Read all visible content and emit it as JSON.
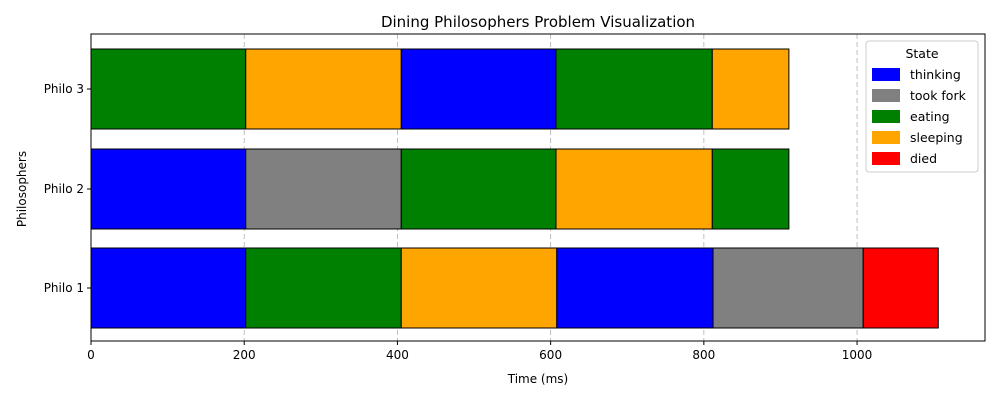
{
  "chart_data": {
    "type": "bar",
    "orientation": "horizontal-timeline",
    "title": "Dining Philosophers Problem Visualization",
    "xlabel": "Time (ms)",
    "ylabel": "Philosophers",
    "xlim": [
      0,
      1167
    ],
    "xticks": [
      0,
      200,
      400,
      600,
      800,
      1000
    ],
    "grid": "x-dashed",
    "legend": {
      "title": "State",
      "placement": "top-right",
      "entries": [
        {
          "state": "thinking",
          "label": "thinking",
          "color": "#0000ff"
        },
        {
          "state": "took fork",
          "label": "took fork",
          "color": "#808080"
        },
        {
          "state": "eating",
          "label": "eating",
          "color": "#008000"
        },
        {
          "state": "sleeping",
          "label": "sleeping",
          "color": "#ffa500"
        },
        {
          "state": "died",
          "label": "died",
          "color": "#ff0000"
        }
      ]
    },
    "categories": [
      "Philo 1",
      "Philo 2",
      "Philo 3"
    ],
    "series": [
      {
        "name": "Philo 1",
        "segments": [
          {
            "state": "thinking",
            "start": 0,
            "end": 202
          },
          {
            "state": "eating",
            "start": 202,
            "end": 405
          },
          {
            "state": "sleeping",
            "start": 405,
            "end": 608
          },
          {
            "state": "thinking",
            "start": 608,
            "end": 812
          },
          {
            "state": "took fork",
            "start": 812,
            "end": 1008
          },
          {
            "state": "died",
            "start": 1008,
            "end": 1106
          }
        ]
      },
      {
        "name": "Philo 2",
        "segments": [
          {
            "state": "thinking",
            "start": 0,
            "end": 202
          },
          {
            "state": "took fork",
            "start": 202,
            "end": 405
          },
          {
            "state": "eating",
            "start": 405,
            "end": 607
          },
          {
            "state": "sleeping",
            "start": 607,
            "end": 811
          },
          {
            "state": "eating",
            "start": 811,
            "end": 911
          }
        ]
      },
      {
        "name": "Philo 3",
        "segments": [
          {
            "state": "eating",
            "start": 0,
            "end": 202
          },
          {
            "state": "sleeping",
            "start": 202,
            "end": 405
          },
          {
            "state": "thinking",
            "start": 405,
            "end": 607
          },
          {
            "state": "eating",
            "start": 607,
            "end": 811
          },
          {
            "state": "sleeping",
            "start": 811,
            "end": 911
          }
        ]
      }
    ]
  }
}
